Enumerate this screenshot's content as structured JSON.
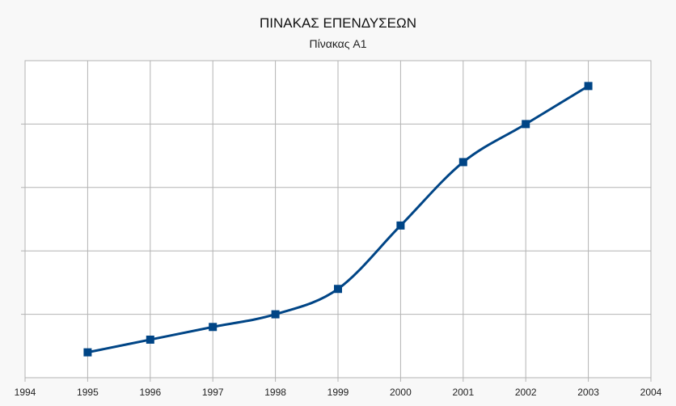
{
  "chart_data": {
    "type": "line",
    "title": "ΠΙΝΑΚΑΣ ΕΠΕΝΔΥΣΕΩΝ",
    "subtitle": "Πίνακας A1",
    "xlabel": "",
    "ylabel": "",
    "x_ticks": [
      "1994",
      "1995",
      "1996",
      "1997",
      "1998",
      "1999",
      "2000",
      "2001",
      "2002",
      "2003",
      "2004"
    ],
    "xlim": [
      1994,
      2004
    ],
    "ylim": [
      0,
      5
    ],
    "y_ticks_labeled": false,
    "grid": true,
    "legend": "none",
    "smooth": true,
    "series": [
      {
        "x": [
          1995,
          1996,
          1997,
          1998,
          1999,
          2000,
          2001,
          2002,
          2003
        ],
        "values": [
          0.4,
          0.6,
          0.8,
          1.0,
          1.4,
          2.4,
          3.4,
          4.0,
          4.6
        ],
        "color": "#004586",
        "marker": "square"
      }
    ]
  }
}
